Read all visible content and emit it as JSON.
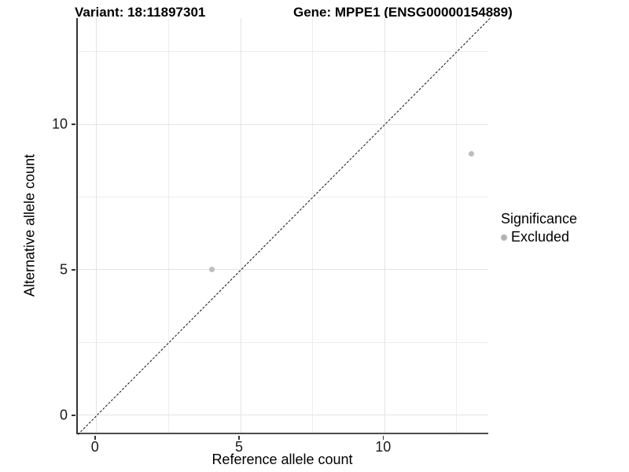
{
  "header": {
    "variant_title": "Variant: 18:11897301",
    "gene_title": "Gene: MPPE1 (ENSG00000154889)"
  },
  "chart_data": {
    "type": "scatter",
    "title": "Variant: 18:11897301 — Gene: MPPE1 (ENSG00000154889)",
    "xlabel": "Reference allele count",
    "ylabel": "Alternative allele count",
    "xlim": [
      -0.65,
      13.65
    ],
    "ylim": [
      -0.65,
      13.65
    ],
    "x_ticks": [
      0,
      5,
      10
    ],
    "y_ticks": [
      0,
      5,
      10
    ],
    "x_tick_labels": [
      "0",
      "5",
      "10"
    ],
    "y_tick_labels": [
      "0",
      "5",
      "10"
    ],
    "major_gridlines": [
      0,
      5,
      10
    ],
    "minor_gridlines": [
      2.5,
      7.5,
      12.5
    ],
    "grid": true,
    "reference_line": {
      "equation": "y = x",
      "style": "dashed",
      "color": "#111111"
    },
    "series": [
      {
        "name": "Excluded",
        "color": "#bdbdbd",
        "points": [
          {
            "x": 4,
            "y": 5
          },
          {
            "x": 13,
            "y": 9
          }
        ]
      }
    ],
    "legend": {
      "title": "Significance",
      "position": "right",
      "items": [
        {
          "label": "Excluded",
          "color": "#b3b3b3"
        }
      ]
    }
  },
  "colors": {
    "axis_line": "#333333",
    "grid_major": "#e3e3e3",
    "grid_minor": "#ededed",
    "point": "#bdbdbd"
  }
}
